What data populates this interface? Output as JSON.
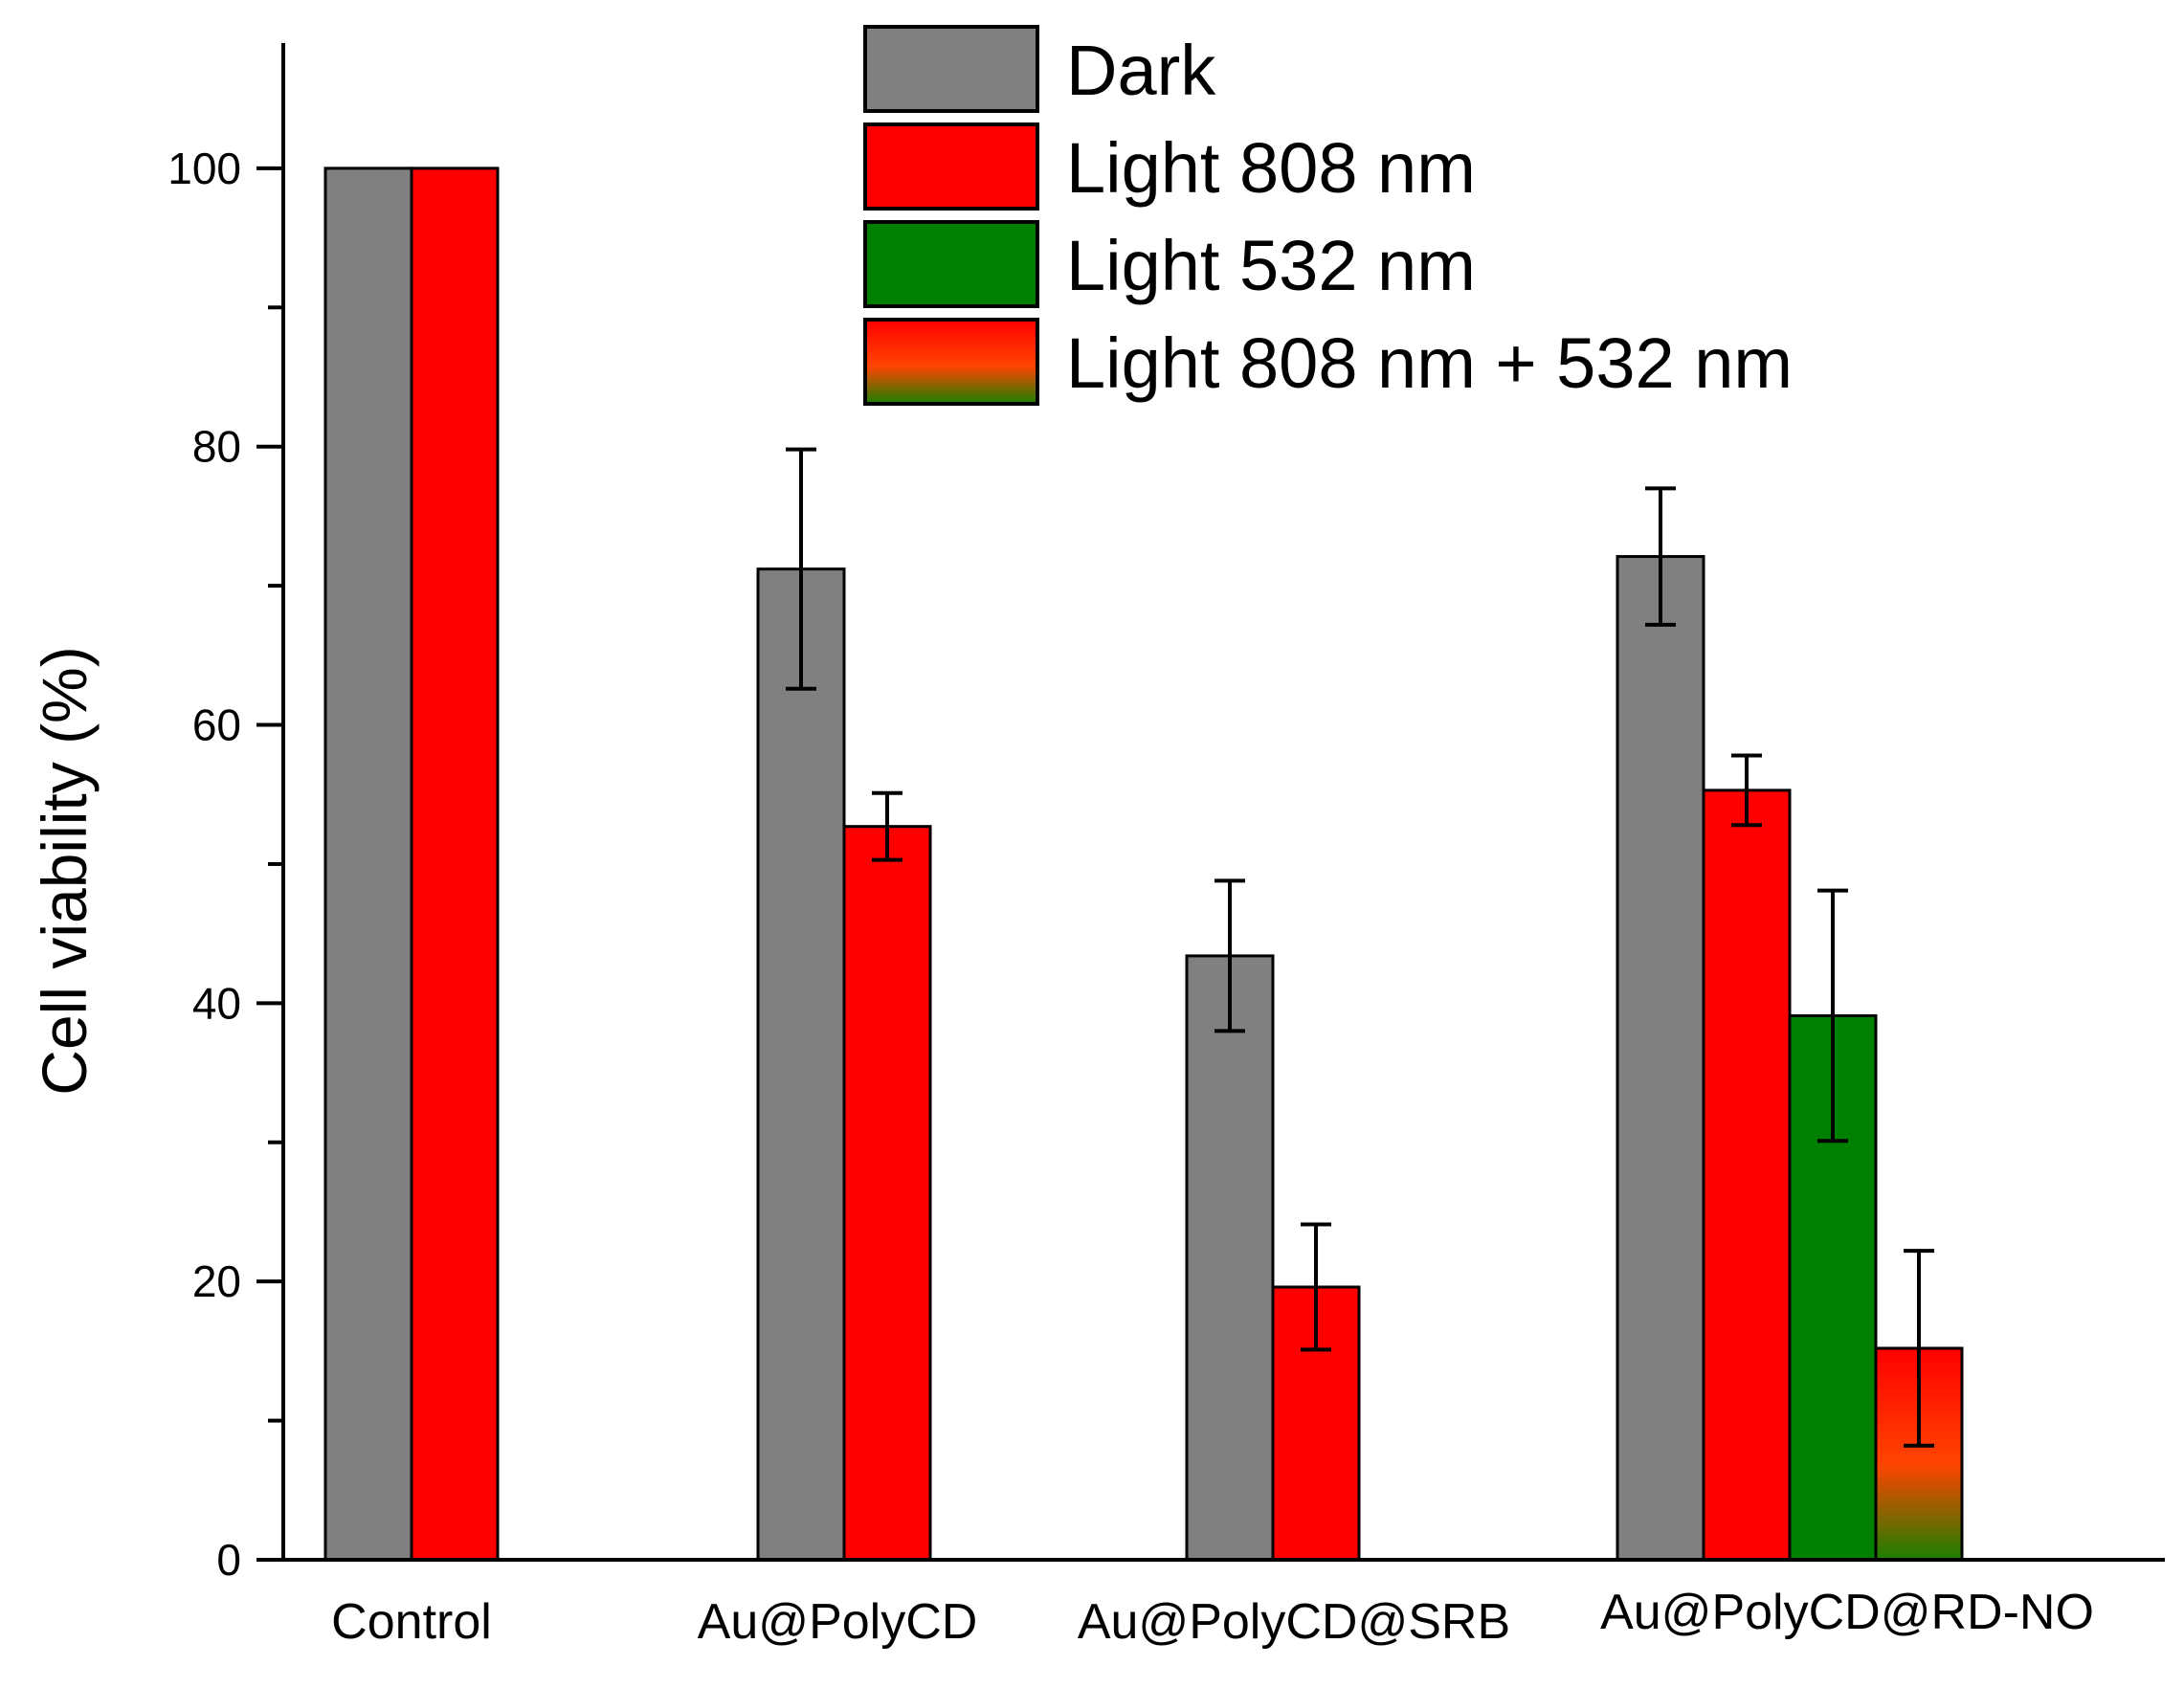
{
  "chart_data": {
    "type": "bar",
    "title": "",
    "xlabel": "",
    "ylabel": "Cell viability (%)",
    "ylim": [
      0,
      109
    ],
    "yticks": [
      0,
      20,
      40,
      60,
      80,
      100
    ],
    "legend_position": "top-right",
    "categories": [
      "Control",
      "Au@PolyCD",
      "Au@PolyCD@SRB",
      "Au@PolyCD@RD-NO"
    ],
    "series": [
      {
        "name": "Dark",
        "fill": "#808080",
        "values": [
          100,
          71.2,
          43.4,
          72.1
        ],
        "errors": [
          null,
          8.6,
          5.4,
          4.9
        ]
      },
      {
        "name": "Light 808 nm",
        "fill": "#ff0000",
        "values": [
          100,
          52.7,
          19.6,
          55.3
        ],
        "errors": [
          null,
          2.4,
          4.5,
          2.5
        ]
      },
      {
        "name": "Light 532 nm",
        "fill": "#008000",
        "values": [
          null,
          null,
          null,
          39.1
        ],
        "errors": [
          null,
          null,
          null,
          9.0
        ]
      },
      {
        "name": "Light 808 nm + 532 nm",
        "fill": "gradient",
        "gradient_colors": [
          "#ff0000",
          "#ff4000",
          "#008000"
        ],
        "values": [
          null,
          null,
          null,
          15.2
        ],
        "errors": [
          null,
          null,
          null,
          7.0
        ]
      }
    ]
  }
}
